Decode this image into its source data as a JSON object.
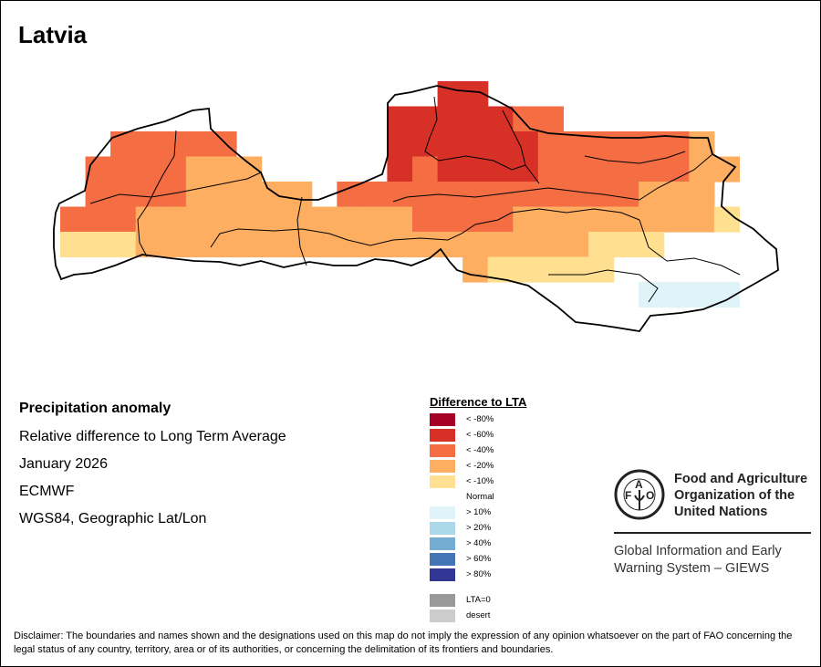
{
  "title": "Latvia",
  "info": {
    "heading": "Precipitation anomaly",
    "subtitle": "Relative difference to Long Term Average",
    "period": "January 2026",
    "source": "ECMWF",
    "projection": "WGS84, Geographic Lat/Lon"
  },
  "legend": {
    "title": "Difference to LTA",
    "items": [
      {
        "code": "V",
        "label": "< -80%",
        "color": "#a50026"
      },
      {
        "code": "R",
        "label": "< -60%",
        "color": "#d73027"
      },
      {
        "code": "O",
        "label": "< -40%",
        "color": "#f46d43"
      },
      {
        "code": "L",
        "label": "< -20%",
        "color": "#fdae61"
      },
      {
        "code": "Y",
        "label": "< -10%",
        "color": "#fee090"
      },
      {
        "code": "N",
        "label": "Normal",
        "color": ""
      },
      {
        "code": "B",
        "label": "> 10%",
        "color": "#e0f3f8"
      },
      {
        "code": "C",
        "label": "> 20%",
        "color": "#abd9e9"
      },
      {
        "code": "D",
        "label": "> 40%",
        "color": "#74add1"
      },
      {
        "code": "E",
        "label": "> 60%",
        "color": "#4575b4"
      },
      {
        "code": "F",
        "label": "> 80%",
        "color": "#313695"
      },
      {
        "code": "Z",
        "label": "LTA=0",
        "color": "#999999"
      },
      {
        "code": "S",
        "label": "desert",
        "color": "#cccccc"
      }
    ]
  },
  "map_data": {
    "grid_legend": "codes refer to legend.items[].code; '.' = normal/no anomaly",
    "grid": [
      "...............RR..........",
      ".............RRRRROO.......",
      "..OOOOO......RRRRRROOOOOOL.",
      ".OOOOLLL.....RORRRROOOOOOLL",
      ".OOOOLLLLL.OOOOOOOOOOOOLLL.",
      "OOOLLLLLLLLLLLOOOOLLLLLLLLY",
      "YYYLLLLLLLLLLLLLLLLLLYYY....",
      "................LYYYYY.....",
      ".......................BBBB"
    ]
  },
  "logo": {
    "letters": "FAO",
    "motto": "FIAT PANIS",
    "org_name_lines": [
      "Food and Agriculture",
      "Organization of the",
      "United Nations"
    ],
    "system_lines": [
      "Global Information and Early",
      "Warning System – GIEWS"
    ]
  },
  "disclaimer": "Disclaimer: The boundaries and names shown and the designations used on this map do not imply the expression of any opinion whatsoever on the part of FAO concerning the legal status of any country, territory, area or of its authorities, or concerning the delimitation of its frontiers and boundaries."
}
